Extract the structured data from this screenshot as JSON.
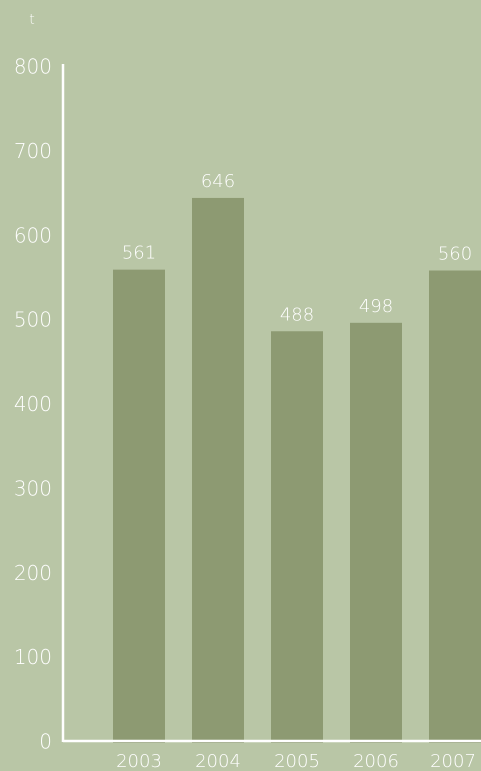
{
  "chart_data": {
    "type": "bar",
    "y_axis_label": "t",
    "categories": [
      "2003",
      "2004",
      "2005",
      "2006",
      "2007"
    ],
    "values": [
      561,
      646,
      488,
      498,
      560
    ],
    "color": "#8d9a72",
    "ylim": [
      0,
      800
    ],
    "yticks": [
      0,
      100,
      200,
      300,
      400,
      500,
      600,
      700,
      800
    ],
    "grid": false
  }
}
